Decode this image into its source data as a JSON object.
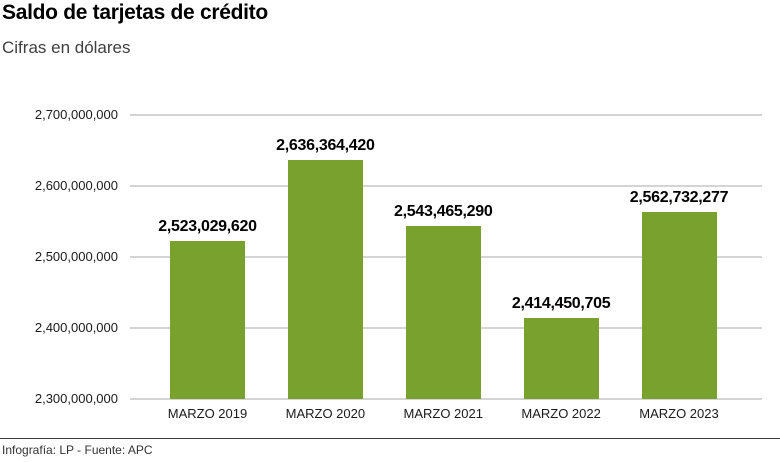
{
  "header": {
    "title": "Saldo de tarjetas de crédito",
    "subtitle": "Cifras en dólares"
  },
  "chart_data": {
    "type": "bar",
    "title": "Saldo de tarjetas de crédito",
    "subtitle": "Cifras en dólares",
    "categories": [
      "MARZO 2019",
      "MARZO 2020",
      "MARZO 2021",
      "MARZO 2022",
      "MARZO 2023"
    ],
    "values": [
      2523029620,
      2636364420,
      2543465290,
      2414450705,
      2562732277
    ],
    "value_labels": [
      "2,523,029,620",
      "2,636,364,420",
      "2,543,465,290",
      "2,414,450,705",
      "2,562,732,277"
    ],
    "xlabel": "",
    "ylabel": "",
    "ylim": [
      2300000000,
      2700000000
    ],
    "yticks": [
      {
        "value": 2300000000,
        "label": "2,300,000,000"
      },
      {
        "value": 2400000000,
        "label": "2,400,000,000"
      },
      {
        "value": 2500000000,
        "label": "2,500,000,000"
      },
      {
        "value": 2600000000,
        "label": "2,600,000,000"
      },
      {
        "value": 2700000000,
        "label": "2,700,000,000"
      }
    ],
    "grid": "horizontal",
    "legend": false
  },
  "footer": {
    "credit": "Infografía: LP - Fuente: APC"
  },
  "colors": {
    "bar_green": "#78A22D",
    "gridline": "#d4d4d4",
    "axis_line": "#c9c9c9",
    "title_text": "#000000",
    "subtitle_text": "#3f3f3f",
    "axis_text": "#1a1a1a",
    "footer_text": "#333333",
    "footer_line": "#3a3a3a"
  }
}
